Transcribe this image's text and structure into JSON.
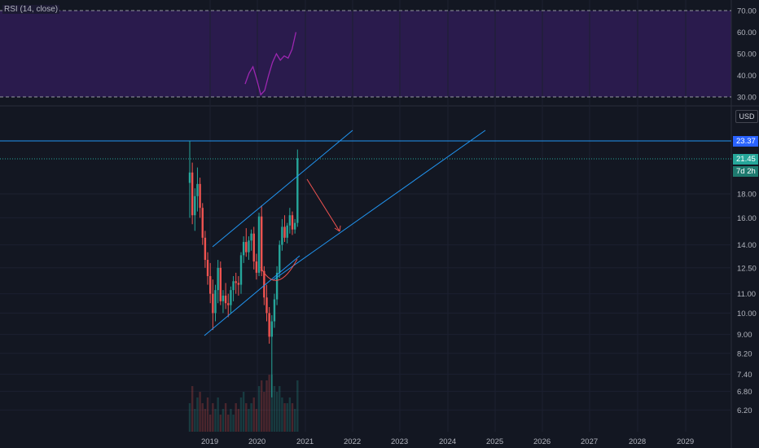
{
  "rsi_panel": {
    "indicator_label": "RSI (14, close)",
    "levels": [
      "70.00",
      "60.00",
      "50.00",
      "40.00",
      "30.00"
    ],
    "upper_band": 70,
    "lower_band": 30,
    "band_color": "#2a1b4d",
    "line_color": "#9c27b0",
    "values": [
      36,
      41,
      44,
      38,
      31,
      33,
      40,
      46,
      50,
      47,
      49,
      48,
      52,
      60
    ]
  },
  "price_panel": {
    "currency": "USD",
    "price_ticks": [
      "23.37",
      "21.45",
      "18.00",
      "16.00",
      "14.00",
      "12.50",
      "11.00",
      "10.00",
      "9.00",
      "8.20",
      "7.40",
      "6.80",
      "6.20"
    ],
    "horizontal_line_price": "23.37",
    "last_price": "21.45",
    "countdown": "7d 2h",
    "scale": "log",
    "up_color": "#26a69a",
    "down_color": "#ef5350",
    "line_color": "#2196f3",
    "arrow_color": "#ef5350"
  },
  "time_axis": {
    "years": [
      "2019",
      "2020",
      "2021",
      "2022",
      "2023",
      "2024",
      "2025",
      "2026",
      "2027",
      "2028",
      "2029"
    ]
  }
}
